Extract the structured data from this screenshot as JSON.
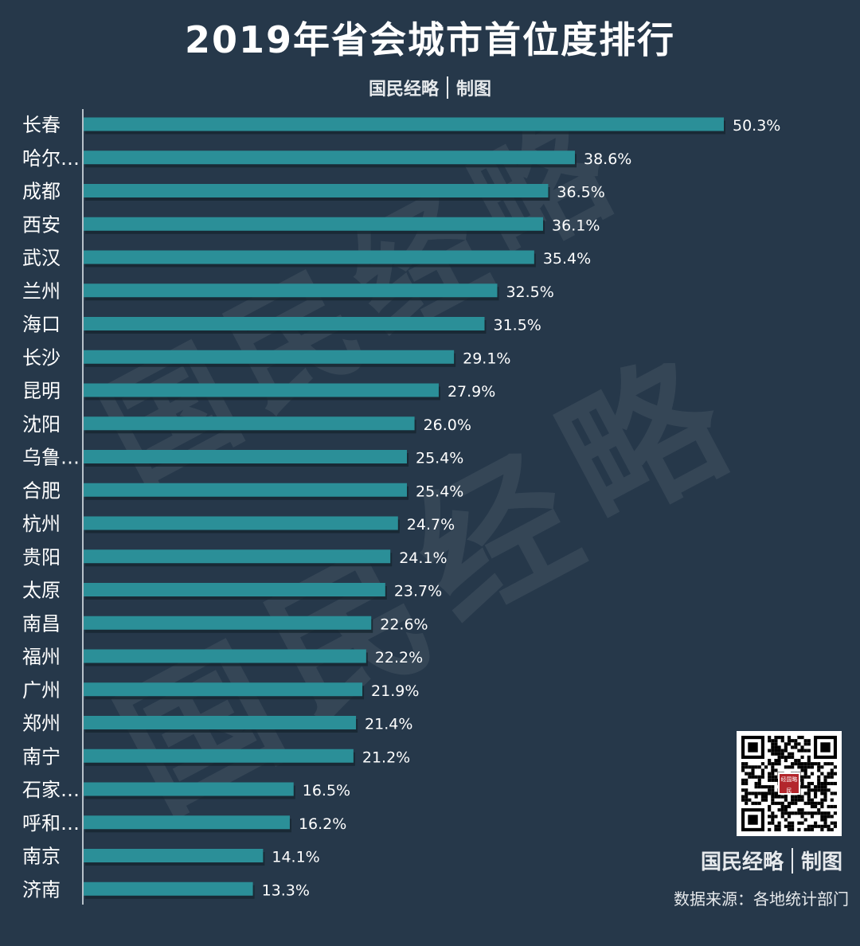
{
  "header": {
    "title": "2019年省会城市首位度排行",
    "brand_name": "国民经略",
    "brand_suffix": "制图"
  },
  "footer": {
    "brand_name": "国民经略",
    "brand_suffix": "制图",
    "source": "数据来源：各地统计部门",
    "qr_logo_text": "经国略民"
  },
  "watermark": {
    "text": "国民经略"
  },
  "colors": {
    "background": "#26384a",
    "bar": "#2b8f98",
    "bar_shadow": "#17252f",
    "text": "#ffffff"
  },
  "chart_data": {
    "type": "bar",
    "orientation": "horizontal",
    "title": "2019年省会城市首位度排行",
    "categories": [
      "长春",
      "哈尔…",
      "成都",
      "西安",
      "武汉",
      "兰州",
      "海口",
      "长沙",
      "昆明",
      "沈阳",
      "乌鲁…",
      "合肥",
      "杭州",
      "贵阳",
      "太原",
      "南昌",
      "福州",
      "广州",
      "郑州",
      "南宁",
      "石家…",
      "呼和…",
      "南京",
      "济南"
    ],
    "values": [
      50.3,
      38.6,
      36.5,
      36.1,
      35.4,
      32.5,
      31.5,
      29.1,
      27.9,
      26.0,
      25.4,
      25.4,
      24.7,
      24.1,
      23.7,
      22.6,
      22.2,
      21.9,
      21.4,
      21.2,
      16.5,
      16.2,
      14.1,
      13.3
    ],
    "value_labels": [
      "50.3%",
      "38.6%",
      "36.5%",
      "36.1%",
      "35.4%",
      "32.5%",
      "31.5%",
      "29.1%",
      "27.9%",
      "26.0%",
      "25.4%",
      "25.4%",
      "24.7%",
      "24.1%",
      "23.7%",
      "22.6%",
      "22.2%",
      "21.9%",
      "21.4%",
      "21.2%",
      "16.5%",
      "16.2%",
      "14.1%",
      "13.3%"
    ],
    "unit": "%",
    "xlim": [
      0,
      50.3
    ],
    "grid": false,
    "legend": "none"
  }
}
